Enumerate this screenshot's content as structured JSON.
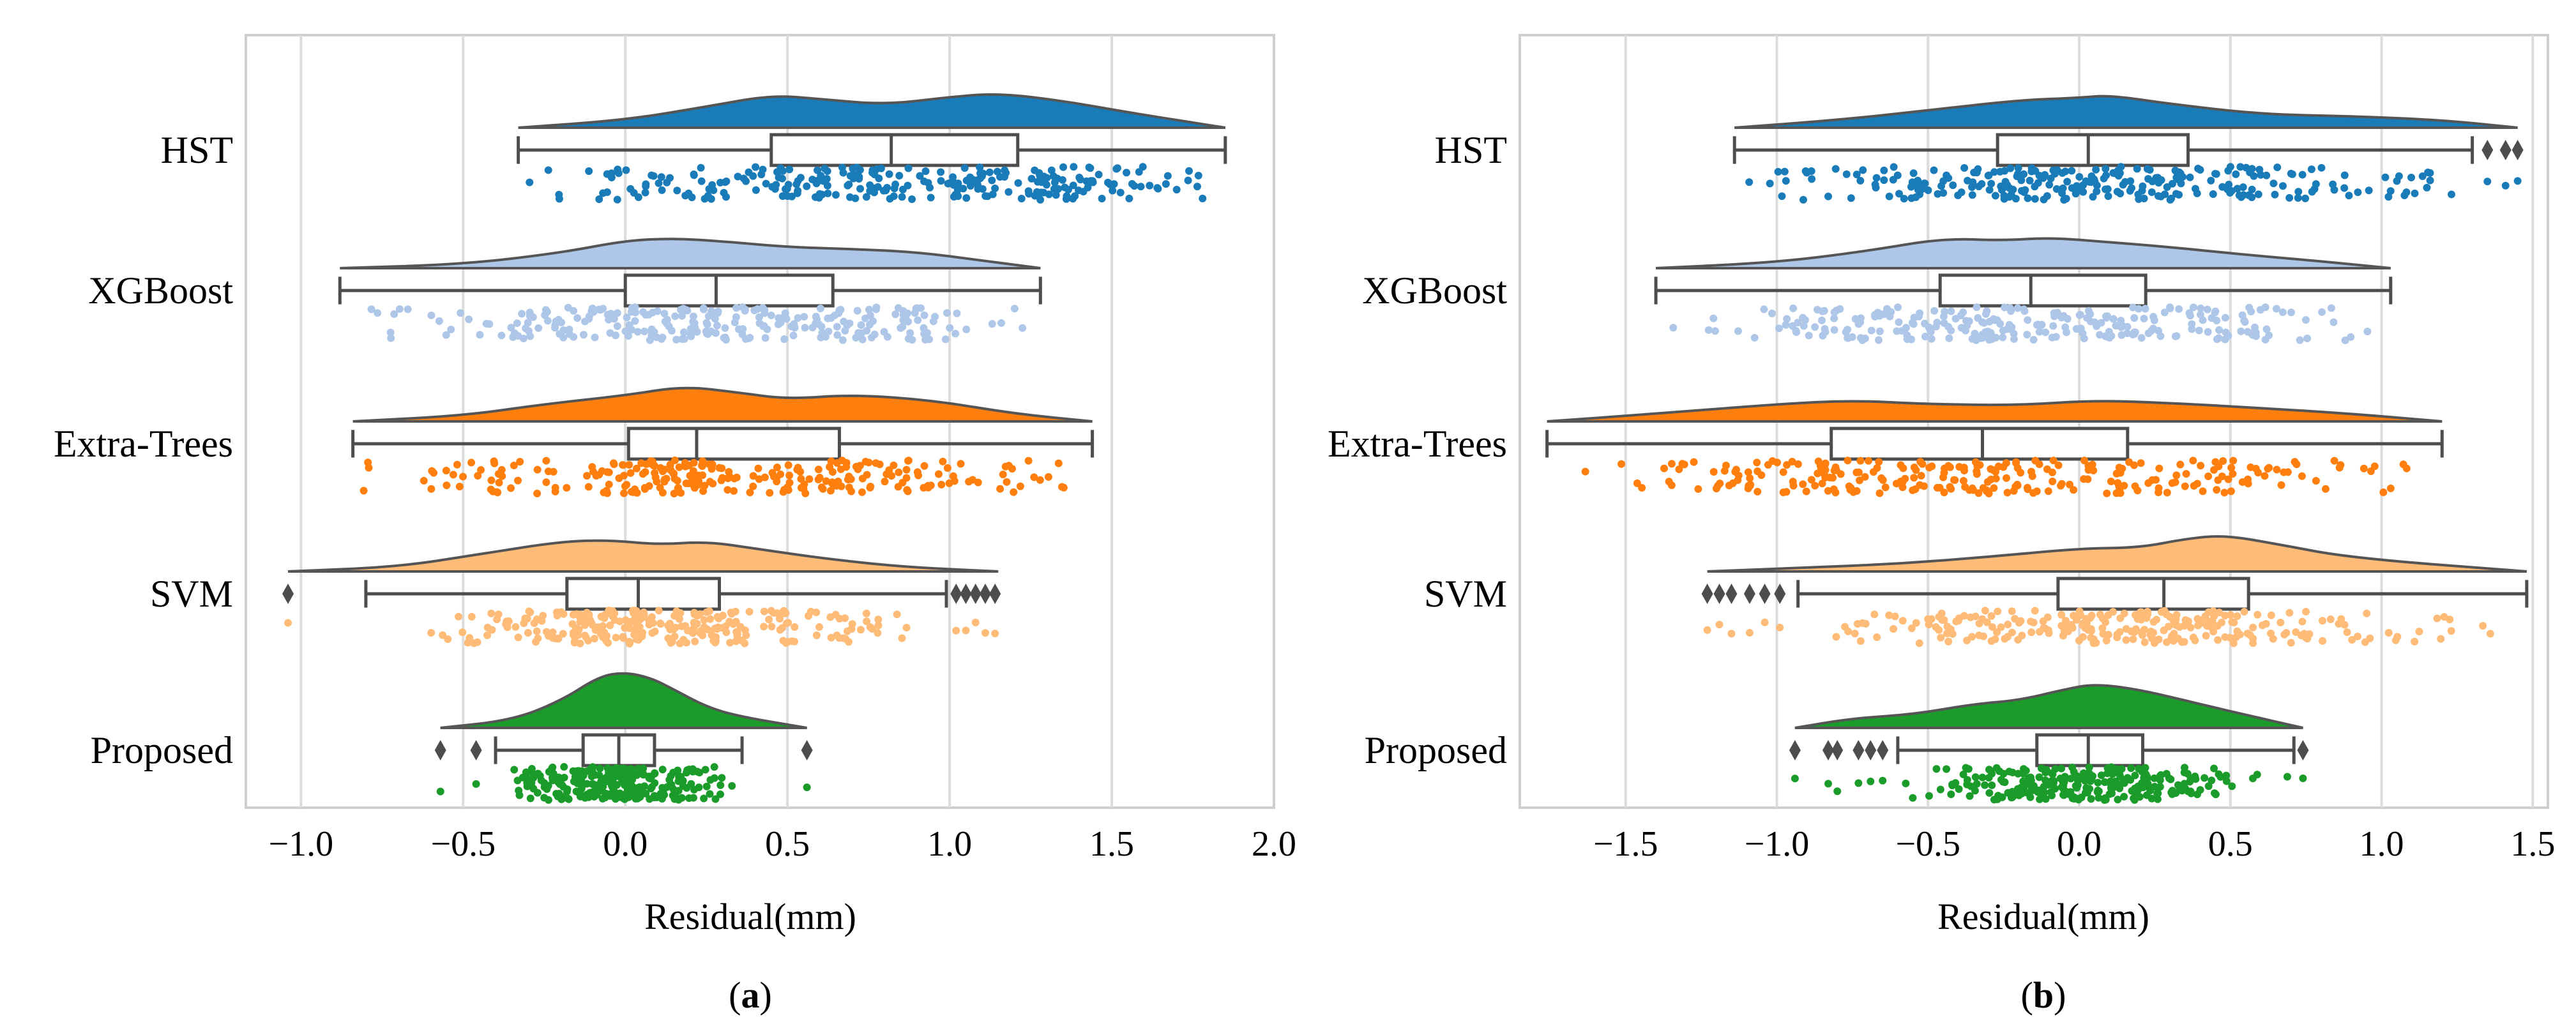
{
  "colors": {
    "HST": "#1a7bb9",
    "XGBoost": "#aec7e8",
    "Extra-Trees": "#ff7f0e",
    "SVM": "#ffbb78",
    "Proposed": "#1a9b2a",
    "box_edge": "#4d4d4d",
    "grid": "#dcdcdc",
    "frame": "#cfcfcf"
  },
  "chart_data": [
    {
      "type": "raincloud",
      "panel": "(a)",
      "panel_letter": "a",
      "xlabel": "Residual(mm)",
      "xlim": [
        -1.17,
        2.0
      ],
      "xticks": [
        -1.0,
        -0.5,
        0.0,
        0.5,
        1.0,
        1.5,
        2.0
      ],
      "xtick_labels": [
        "−1.0",
        "−0.5",
        "0.0",
        "0.5",
        "1.0",
        "1.5",
        "2.0"
      ],
      "grid": true,
      "categories": [
        "HST",
        "XGBoost",
        "Extra-Trees",
        "SVM",
        "Proposed"
      ],
      "series": [
        {
          "name": "HST",
          "min": -0.33,
          "q1": 0.45,
          "median": 0.82,
          "q3": 1.21,
          "max": 1.85,
          "outliers": [],
          "density_x": [
            -0.33,
            0.0,
            0.25,
            0.45,
            0.6,
            0.8,
            1.0,
            1.15,
            1.35,
            1.55,
            1.85
          ],
          "density_y": [
            0.0,
            0.2,
            0.55,
            0.85,
            0.75,
            0.6,
            0.8,
            0.9,
            0.7,
            0.4,
            0.0
          ]
        },
        {
          "name": "XGBoost",
          "min": -0.88,
          "q1": 0.0,
          "median": 0.28,
          "q3": 0.64,
          "max": 1.28,
          "outliers": [],
          "density_x": [
            -0.88,
            -0.5,
            -0.2,
            0.0,
            0.15,
            0.3,
            0.5,
            0.7,
            0.9,
            1.1,
            1.28
          ],
          "density_y": [
            0.0,
            0.1,
            0.4,
            0.72,
            0.78,
            0.7,
            0.55,
            0.5,
            0.42,
            0.2,
            0.0
          ]
        },
        {
          "name": "Extra-Trees",
          "min": -0.84,
          "q1": 0.01,
          "median": 0.22,
          "q3": 0.66,
          "max": 1.44,
          "outliers": [],
          "density_x": [
            -0.84,
            -0.5,
            -0.25,
            0.0,
            0.18,
            0.35,
            0.5,
            0.7,
            0.95,
            1.2,
            1.44
          ],
          "density_y": [
            0.0,
            0.15,
            0.45,
            0.68,
            0.92,
            0.75,
            0.58,
            0.7,
            0.55,
            0.2,
            0.0
          ]
        },
        {
          "name": "SVM",
          "min": -0.8,
          "q1": -0.18,
          "median": 0.04,
          "q3": 0.29,
          "max": 0.99,
          "outliers": [
            -1.04,
            1.02,
            1.05,
            1.08,
            1.11,
            1.14
          ],
          "density_x": [
            -1.04,
            -0.7,
            -0.45,
            -0.2,
            -0.05,
            0.1,
            0.25,
            0.4,
            0.6,
            0.85,
            1.15
          ],
          "density_y": [
            0.0,
            0.12,
            0.45,
            0.78,
            0.82,
            0.7,
            0.78,
            0.6,
            0.35,
            0.12,
            0.0
          ]
        },
        {
          "name": "Proposed",
          "min": -0.4,
          "q1": -0.13,
          "median": -0.02,
          "q3": 0.09,
          "max": 0.36,
          "outliers": [
            -0.57,
            -0.46,
            0.56
          ],
          "density_x": [
            -0.57,
            -0.35,
            -0.2,
            -0.08,
            0.0,
            0.08,
            0.15,
            0.25,
            0.35,
            0.56
          ],
          "density_y": [
            0.0,
            0.2,
            0.7,
            1.35,
            1.45,
            1.3,
            1.0,
            0.55,
            0.3,
            0.0
          ]
        }
      ]
    },
    {
      "type": "raincloud",
      "panel": "(b)",
      "panel_letter": "b",
      "xlabel": "Residual(mm)",
      "xlim": [
        -1.85,
        1.55
      ],
      "xticks": [
        -1.5,
        -1.0,
        -0.5,
        0.0,
        0.5,
        1.0,
        1.5
      ],
      "xtick_labels": [
        "−1.5",
        "−1.0",
        "−0.5",
        "0.0",
        "0.5",
        "1.0",
        "1.5"
      ],
      "grid": true,
      "categories": [
        "HST",
        "XGBoost",
        "Extra-Trees",
        "SVM",
        "Proposed"
      ],
      "series": [
        {
          "name": "HST",
          "min": -1.14,
          "q1": -0.27,
          "median": 0.03,
          "q3": 0.36,
          "max": 1.3,
          "outliers": [
            1.35,
            1.41,
            1.45
          ],
          "density_x": [
            -1.14,
            -0.8,
            -0.5,
            -0.2,
            0.0,
            0.1,
            0.3,
            0.6,
            0.9,
            1.2,
            1.45
          ],
          "density_y": [
            0.0,
            0.2,
            0.45,
            0.72,
            0.78,
            0.85,
            0.62,
            0.35,
            0.3,
            0.2,
            0.0
          ]
        },
        {
          "name": "XGBoost",
          "min": -1.4,
          "q1": -0.46,
          "median": -0.16,
          "q3": 0.22,
          "max": 1.03,
          "outliers": [],
          "density_x": [
            -1.4,
            -1.0,
            -0.7,
            -0.45,
            -0.25,
            -0.1,
            0.1,
            0.3,
            0.55,
            0.8,
            1.03
          ],
          "density_y": [
            0.0,
            0.15,
            0.45,
            0.78,
            0.72,
            0.8,
            0.68,
            0.55,
            0.35,
            0.18,
            0.0
          ]
        },
        {
          "name": "Extra-Trees",
          "min": -1.76,
          "q1": -0.82,
          "median": -0.32,
          "q3": 0.16,
          "max": 1.2,
          "outliers": [],
          "density_x": [
            -1.76,
            -1.4,
            -1.0,
            -0.75,
            -0.5,
            -0.2,
            0.05,
            0.3,
            0.6,
            0.9,
            1.2
          ],
          "density_y": [
            0.0,
            0.2,
            0.45,
            0.55,
            0.45,
            0.42,
            0.55,
            0.48,
            0.35,
            0.2,
            0.0
          ]
        },
        {
          "name": "SVM",
          "min": -0.93,
          "q1": -0.07,
          "median": 0.28,
          "q3": 0.56,
          "max": 1.48,
          "outliers": [
            -1.23,
            -1.19,
            -1.15,
            -1.09,
            -1.04,
            -0.99
          ],
          "density_x": [
            -1.23,
            -0.9,
            -0.6,
            -0.3,
            0.0,
            0.2,
            0.35,
            0.48,
            0.65,
            0.9,
            1.48
          ],
          "density_y": [
            0.0,
            0.1,
            0.2,
            0.38,
            0.6,
            0.62,
            0.85,
            0.95,
            0.72,
            0.35,
            0.0
          ]
        },
        {
          "name": "Proposed",
          "min": -0.6,
          "q1": -0.14,
          "median": 0.03,
          "q3": 0.21,
          "max": 0.71,
          "outliers": [
            -0.94,
            -0.83,
            -0.8,
            -0.73,
            -0.69,
            -0.65,
            0.74
          ],
          "density_x": [
            -0.94,
            -0.75,
            -0.55,
            -0.35,
            -0.2,
            -0.05,
            0.05,
            0.2,
            0.4,
            0.6,
            0.74
          ],
          "density_y": [
            0.0,
            0.25,
            0.35,
            0.62,
            0.72,
            1.0,
            1.15,
            1.0,
            0.62,
            0.25,
            0.0
          ]
        }
      ]
    }
  ]
}
